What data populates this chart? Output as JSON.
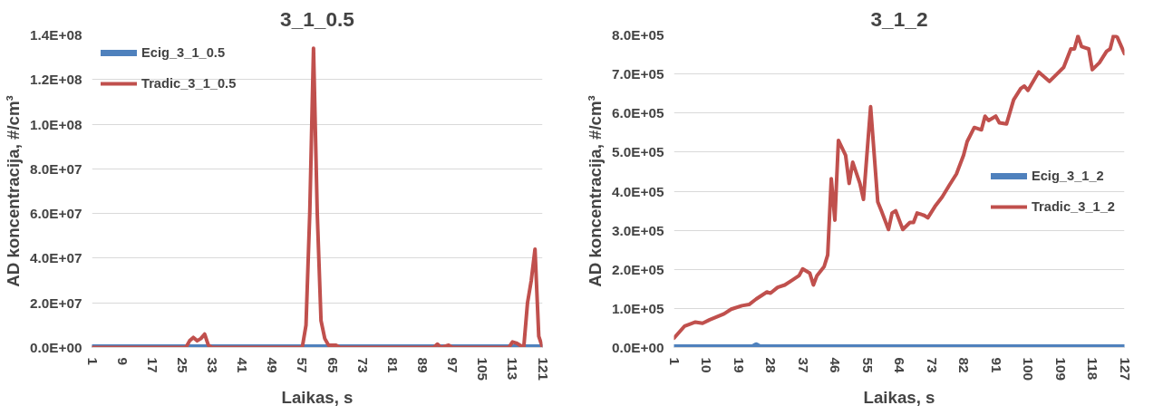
{
  "chart_data": [
    {
      "type": "line",
      "title": "3_1_0.5",
      "xlabel": "Laikas, s",
      "ylabel": "AD koncentracija, #/cm³",
      "xlim": [
        1,
        121
      ],
      "xticks": [
        1,
        9,
        17,
        25,
        33,
        41,
        49,
        57,
        65,
        73,
        81,
        89,
        97,
        105,
        113,
        121
      ],
      "ylim": [
        0,
        140000000
      ],
      "yticks": [
        {
          "value": 0,
          "label": "0.0E+00"
        },
        {
          "value": 20000000,
          "label": "2.0E+07"
        },
        {
          "value": 40000000,
          "label": "4.0E+07"
        },
        {
          "value": 60000000,
          "label": "6.0E+07"
        },
        {
          "value": 80000000,
          "label": "8.0E+07"
        },
        {
          "value": 100000000,
          "label": "1.0E+08"
        },
        {
          "value": 120000000,
          "label": "1.2E+08"
        },
        {
          "value": 140000000,
          "label": "1.4E+08"
        }
      ],
      "grid": "y",
      "legend": "top left",
      "line_style": "solid",
      "series": [
        {
          "name": "Ecig_3_1_0.5",
          "color": "#4f81bd",
          "x": [
            1,
            121
          ],
          "values": [
            0,
            0
          ]
        },
        {
          "name": "Tradic_3_1_0.5",
          "color": "#c0504d",
          "x": [
            1,
            26,
            27,
            28,
            29,
            30,
            31,
            32,
            33,
            57,
            58,
            59,
            60,
            61,
            62,
            63,
            64,
            66,
            67,
            92,
            93,
            94,
            96,
            97,
            112,
            113,
            114,
            115,
            116,
            117,
            118,
            119,
            120,
            121
          ],
          "values": [
            0,
            0,
            3000000,
            4500000,
            3000000,
            4000000,
            6000000,
            1000000,
            0,
            0,
            10000000,
            60000000,
            134000000,
            60000000,
            12000000,
            4000000,
            1000000,
            1000000,
            0,
            0,
            1500000,
            0,
            1000000,
            0,
            0,
            2500000,
            2000000,
            1000000,
            0,
            20000000,
            30000000,
            44000000,
            5000000,
            0
          ]
        }
      ]
    },
    {
      "type": "line",
      "title": "3_1_2",
      "xlabel": "Laikas, s",
      "ylabel": "AD koncentracija, #/cm³",
      "xlim": [
        1,
        127
      ],
      "xticks": [
        1,
        10,
        19,
        28,
        37,
        46,
        55,
        64,
        73,
        82,
        91,
        100,
        109,
        118,
        127
      ],
      "ylim": [
        0,
        800000
      ],
      "yticks": [
        {
          "value": 0,
          "label": "0.0E+00"
        },
        {
          "value": 100000,
          "label": "1.0E+05"
        },
        {
          "value": 200000,
          "label": "2.0E+05"
        },
        {
          "value": 300000,
          "label": "3.0E+05"
        },
        {
          "value": 400000,
          "label": "4.0E+05"
        },
        {
          "value": 500000,
          "label": "5.0E+05"
        },
        {
          "value": 600000,
          "label": "6.0E+05"
        },
        {
          "value": 700000,
          "label": "7.0E+05"
        },
        {
          "value": 800000,
          "label": "8.0E+05"
        }
      ],
      "grid": "y",
      "legend": "right",
      "line_style": "solid",
      "series": [
        {
          "name": "Ecig_3_1_2",
          "color": "#4f81bd",
          "x": [
            1,
            23,
            24,
            25,
            127
          ],
          "values": [
            0,
            0,
            5000,
            0,
            0
          ]
        },
        {
          "name": "Tradic_3_1_2",
          "color": "#c0504d",
          "x": [
            1,
            4,
            7,
            9,
            11,
            15,
            17,
            20,
            22,
            24,
            27,
            28,
            30,
            32,
            34,
            36,
            37,
            39,
            40,
            41,
            43,
            44,
            45,
            46,
            47,
            49,
            50,
            51,
            53,
            54,
            56,
            58,
            59,
            61,
            62,
            63,
            65,
            67,
            68,
            69,
            71,
            72,
            74,
            76,
            78,
            80,
            82,
            83,
            85,
            87,
            88,
            89,
            91,
            92,
            94,
            96,
            98,
            99,
            100,
            103,
            106,
            108,
            110,
            112,
            113,
            114,
            115,
            117,
            118,
            120,
            122,
            123,
            124,
            125,
            127
          ],
          "values": [
            24000,
            55000,
            65000,
            62000,
            71000,
            86000,
            98000,
            107000,
            110000,
            124000,
            142000,
            139000,
            154000,
            160000,
            172000,
            184000,
            201000,
            190000,
            160000,
            184000,
            207000,
            237000,
            432000,
            326000,
            530000,
            492000,
            420000,
            474000,
            420000,
            379000,
            616000,
            373000,
            350000,
            302000,
            344000,
            350000,
            302000,
            320000,
            320000,
            344000,
            338000,
            332000,
            361000,
            385000,
            415000,
            444000,
            492000,
            527000,
            563000,
            557000,
            592000,
            581000,
            592000,
            575000,
            572000,
            634000,
            663000,
            669000,
            658000,
            705000,
            681000,
            699000,
            717000,
            764000,
            764000,
            797000,
            770000,
            764000,
            711000,
            729000,
            758000,
            764000,
            800000,
            794000,
            752000
          ]
        }
      ]
    }
  ]
}
